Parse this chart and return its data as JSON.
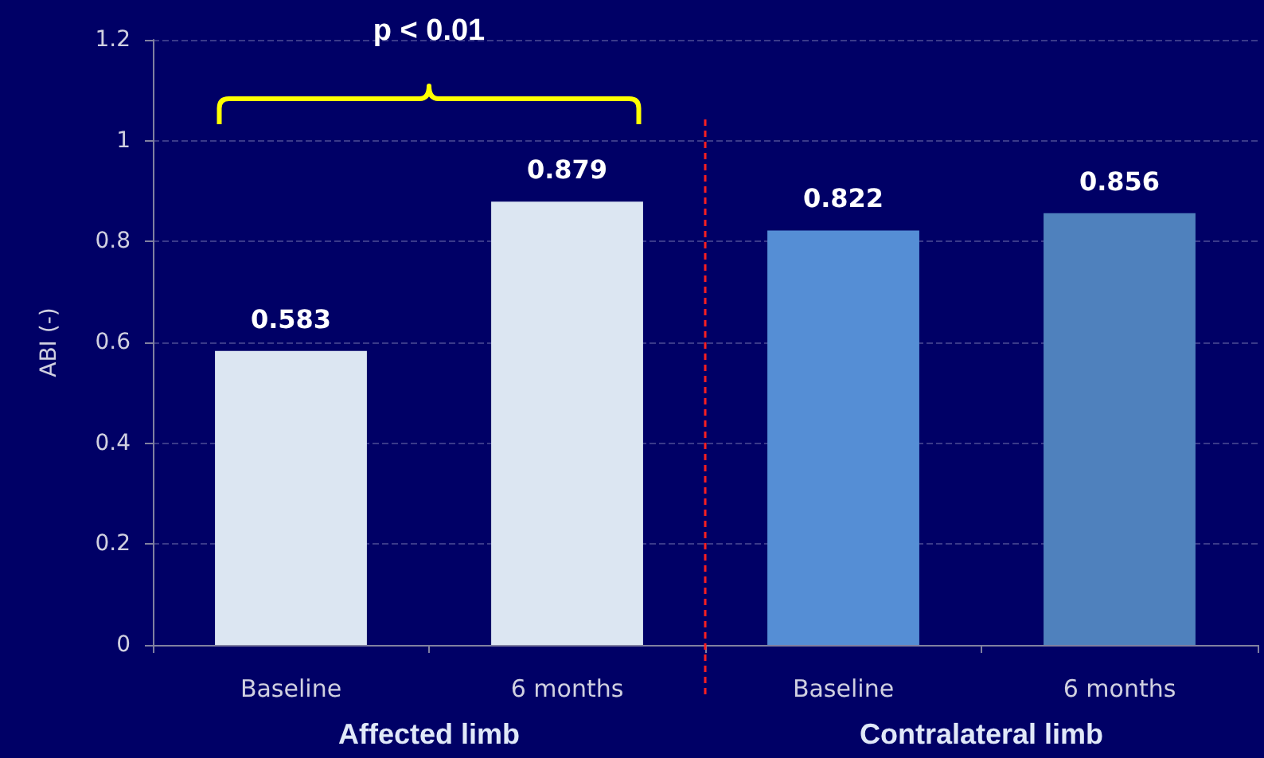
{
  "chart_data": {
    "type": "bar",
    "ylabel": "ABI (-)",
    "categories": [
      "Baseline",
      "6 months",
      "Baseline",
      "6 months"
    ],
    "values": [
      0.583,
      0.879,
      0.822,
      0.856
    ],
    "colors": [
      "#dce6f2",
      "#dce6f2",
      "#558ed5",
      "#4f81bd"
    ],
    "ylim": [
      0,
      1.2
    ],
    "yticks": [
      0,
      0.2,
      0.4,
      0.6,
      0.8,
      1,
      1.2
    ],
    "grid": "y",
    "data_labels": true,
    "annotations": [
      "p < 0.01",
      "Affected limb",
      "Contralateral limb"
    ]
  }
}
